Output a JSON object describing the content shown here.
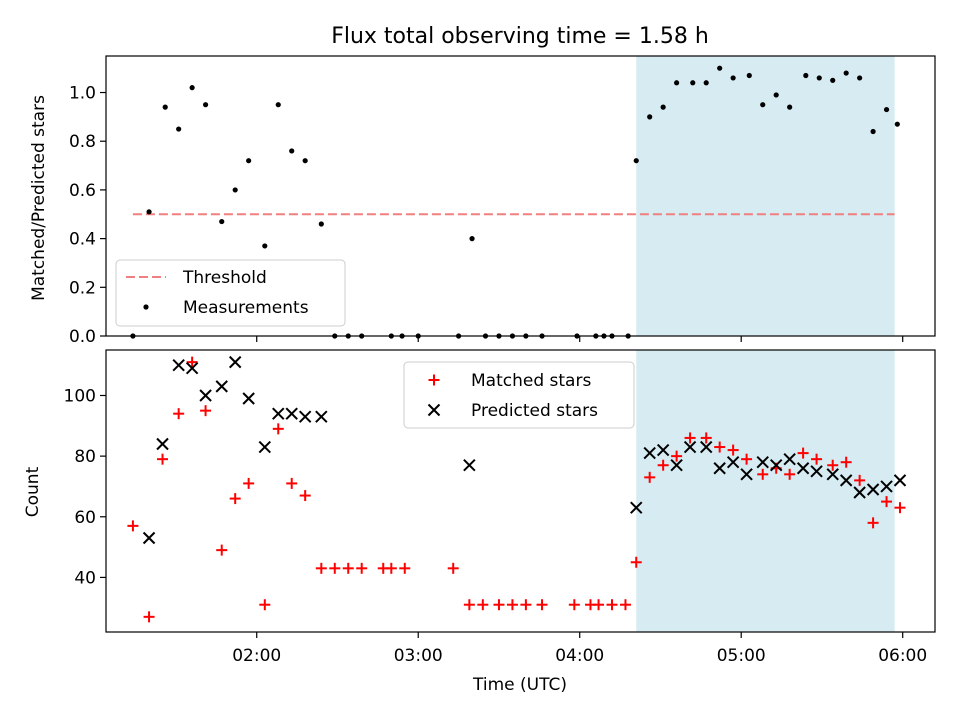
{
  "figure_title": "Flux total observing time = 1.58 h",
  "colors": {
    "shade": "#add8e6",
    "threshold": "#f08080",
    "measurement": "#000000",
    "matched": "#ff0000",
    "predicted": "#000000"
  },
  "chart_data": [
    {
      "type": "scatter",
      "title": "Flux total observing time = 1.58 h",
      "xlabel": "",
      "ylabel": "Matched/Predicted stars",
      "xlim": [
        "01:04",
        "06:12"
      ],
      "ylim": [
        0,
        1.15
      ],
      "yticks": [
        0.0,
        0.2,
        0.4,
        0.6,
        0.8,
        1.0
      ],
      "yticklabels": [
        "0.0",
        "0.2",
        "0.4",
        "0.6",
        "0.8",
        "1.0"
      ],
      "xticks": [
        "02:00",
        "03:00",
        "04:00",
        "05:00",
        "06:00"
      ],
      "xticklabels_shown": false,
      "grid": false,
      "legend_position": "lower-left",
      "shaded_interval": [
        "04:21",
        "05:57"
      ],
      "threshold": {
        "name": "Threshold",
        "y": 0.5,
        "x_range": [
          "01:14",
          "05:57"
        ],
        "style": "dashed"
      },
      "series": [
        {
          "name": "Measurements",
          "marker": "dot",
          "points": [
            [
              "01:14",
              0.0
            ],
            [
              "01:20",
              0.51
            ],
            [
              "01:26",
              0.94
            ],
            [
              "01:31",
              0.85
            ],
            [
              "01:36",
              1.02
            ],
            [
              "01:41",
              0.95
            ],
            [
              "01:47",
              0.47
            ],
            [
              "01:52",
              0.6
            ],
            [
              "01:57",
              0.72
            ],
            [
              "02:03",
              0.37
            ],
            [
              "02:08",
              0.95
            ],
            [
              "02:13",
              0.76
            ],
            [
              "02:18",
              0.72
            ],
            [
              "02:24",
              0.46
            ],
            [
              "02:29",
              0.0
            ],
            [
              "02:34",
              0.0
            ],
            [
              "02:39",
              0.0
            ],
            [
              "02:50",
              0.0
            ],
            [
              "02:54",
              0.0
            ],
            [
              "03:00",
              0.0
            ],
            [
              "03:15",
              0.0
            ],
            [
              "03:20",
              0.4
            ],
            [
              "03:25",
              0.0
            ],
            [
              "03:30",
              0.0
            ],
            [
              "03:35",
              0.0
            ],
            [
              "03:40",
              0.0
            ],
            [
              "03:46",
              0.0
            ],
            [
              "03:59",
              0.0
            ],
            [
              "04:06",
              0.0
            ],
            [
              "04:09",
              0.0
            ],
            [
              "04:12",
              0.0
            ],
            [
              "04:18",
              0.0
            ],
            [
              "04:21",
              0.72
            ],
            [
              "04:26",
              0.9
            ],
            [
              "04:31",
              0.94
            ],
            [
              "04:36",
              1.04
            ],
            [
              "04:42",
              1.04
            ],
            [
              "04:47",
              1.04
            ],
            [
              "04:52",
              1.1
            ],
            [
              "04:57",
              1.06
            ],
            [
              "05:03",
              1.07
            ],
            [
              "05:08",
              0.95
            ],
            [
              "05:13",
              0.99
            ],
            [
              "05:18",
              0.94
            ],
            [
              "05:24",
              1.07
            ],
            [
              "05:29",
              1.06
            ],
            [
              "05:34",
              1.05
            ],
            [
              "05:39",
              1.08
            ],
            [
              "05:44",
              1.06
            ],
            [
              "05:49",
              0.84
            ],
            [
              "05:54",
              0.93
            ],
            [
              "05:58",
              0.87
            ]
          ]
        }
      ]
    },
    {
      "type": "scatter",
      "title": "",
      "xlabel": "Time (UTC)",
      "ylabel": "Count",
      "xlim": [
        "01:04",
        "06:12"
      ],
      "ylim": [
        22,
        115
      ],
      "yticks": [
        40,
        60,
        80,
        100
      ],
      "yticklabels": [
        "40",
        "60",
        "80",
        "100"
      ],
      "xticks": [
        "02:00",
        "03:00",
        "04:00",
        "05:00",
        "06:00"
      ],
      "xticklabels": [
        "02:00",
        "03:00",
        "04:00",
        "05:00",
        "06:00"
      ],
      "grid": false,
      "legend_position": "top-center",
      "shaded_interval": [
        "04:21",
        "05:57"
      ],
      "series": [
        {
          "name": "Matched stars",
          "marker": "plus",
          "points": [
            [
              "01:14",
              57
            ],
            [
              "01:20",
              27
            ],
            [
              "01:25",
              79
            ],
            [
              "01:31",
              94
            ],
            [
              "01:36",
              111
            ],
            [
              "01:41",
              95
            ],
            [
              "01:47",
              49
            ],
            [
              "01:52",
              66
            ],
            [
              "01:57",
              71
            ],
            [
              "02:03",
              31
            ],
            [
              "02:08",
              89
            ],
            [
              "02:13",
              71
            ],
            [
              "02:18",
              67
            ],
            [
              "02:24",
              43
            ],
            [
              "02:29",
              43
            ],
            [
              "02:34",
              43
            ],
            [
              "02:39",
              43
            ],
            [
              "02:47",
              43
            ],
            [
              "02:50",
              43
            ],
            [
              "02:55",
              43
            ],
            [
              "03:13",
              43
            ],
            [
              "03:19",
              31
            ],
            [
              "03:24",
              31
            ],
            [
              "03:30",
              31
            ],
            [
              "03:35",
              31
            ],
            [
              "03:40",
              31
            ],
            [
              "03:46",
              31
            ],
            [
              "03:58",
              31
            ],
            [
              "04:04",
              31
            ],
            [
              "04:07",
              31
            ],
            [
              "04:12",
              31
            ],
            [
              "04:17",
              31
            ],
            [
              "04:21",
              45
            ],
            [
              "04:26",
              73
            ],
            [
              "04:31",
              77
            ],
            [
              "04:36",
              80
            ],
            [
              "04:41",
              86
            ],
            [
              "04:47",
              86
            ],
            [
              "04:52",
              83
            ],
            [
              "04:57",
              82
            ],
            [
              "05:02",
              79
            ],
            [
              "05:08",
              74
            ],
            [
              "05:13",
              76
            ],
            [
              "05:18",
              74
            ],
            [
              "05:23",
              81
            ],
            [
              "05:28",
              79
            ],
            [
              "05:34",
              77
            ],
            [
              "05:39",
              78
            ],
            [
              "05:44",
              72
            ],
            [
              "05:49",
              58
            ],
            [
              "05:54",
              65
            ],
            [
              "05:59",
              63
            ]
          ]
        },
        {
          "name": "Predicted stars",
          "marker": "x",
          "points": [
            [
              "01:20",
              53
            ],
            [
              "01:25",
              84
            ],
            [
              "01:31",
              110
            ],
            [
              "01:36",
              109
            ],
            [
              "01:41",
              100
            ],
            [
              "01:47",
              103
            ],
            [
              "01:52",
              111
            ],
            [
              "01:57",
              99
            ],
            [
              "02:03",
              83
            ],
            [
              "02:08",
              94
            ],
            [
              "02:13",
              94
            ],
            [
              "02:18",
              93
            ],
            [
              "02:24",
              93
            ],
            [
              "03:19",
              77
            ],
            [
              "04:21",
              63
            ],
            [
              "04:26",
              81
            ],
            [
              "04:31",
              82
            ],
            [
              "04:36",
              77
            ],
            [
              "04:41",
              83
            ],
            [
              "04:47",
              83
            ],
            [
              "04:52",
              76
            ],
            [
              "04:57",
              78
            ],
            [
              "05:02",
              74
            ],
            [
              "05:08",
              78
            ],
            [
              "05:13",
              77
            ],
            [
              "05:18",
              79
            ],
            [
              "05:23",
              76
            ],
            [
              "05:28",
              75
            ],
            [
              "05:34",
              74
            ],
            [
              "05:39",
              72
            ],
            [
              "05:44",
              68
            ],
            [
              "05:49",
              69
            ],
            [
              "05:54",
              70
            ],
            [
              "05:59",
              72
            ]
          ]
        }
      ]
    }
  ]
}
